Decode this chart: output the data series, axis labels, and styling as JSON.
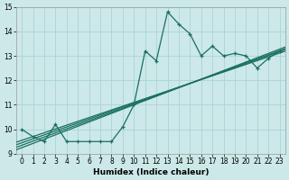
{
  "x": [
    0,
    1,
    2,
    3,
    4,
    5,
    6,
    7,
    8,
    9,
    10,
    11,
    12,
    13,
    14,
    15,
    16,
    17,
    18,
    19,
    20,
    21,
    22,
    23
  ],
  "y_main": [
    10.0,
    9.7,
    9.5,
    10.2,
    9.5,
    9.5,
    9.5,
    9.5,
    9.5,
    10.1,
    11.0,
    13.2,
    12.8,
    14.8,
    14.3,
    13.9,
    13.0,
    13.4,
    13.0,
    13.1,
    13.0,
    12.5,
    12.9,
    13.2
  ],
  "line_color": "#1a7060",
  "bg_color": "#cce8e8",
  "grid_color": "#aad4d4",
  "xlabel": "Humidex (Indice chaleur)",
  "ylim": [
    9,
    15
  ],
  "xlim": [
    -0.5,
    23.5
  ],
  "yticks": [
    9,
    10,
    11,
    12,
    13,
    14,
    15
  ],
  "xticks": [
    0,
    1,
    2,
    3,
    4,
    5,
    6,
    7,
    8,
    9,
    10,
    11,
    12,
    13,
    14,
    15,
    16,
    17,
    18,
    19,
    20,
    21,
    22,
    23
  ],
  "trend_slopes": [
    0.155,
    0.162,
    0.168,
    0.175
  ],
  "trend_intercepts": [
    9.55,
    9.45,
    9.35,
    9.25
  ]
}
